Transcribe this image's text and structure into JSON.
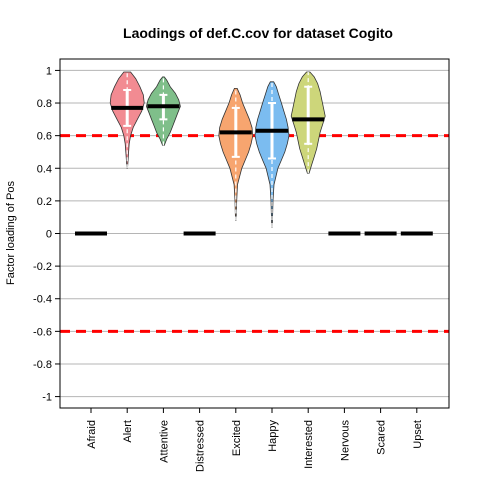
{
  "chart_data": {
    "type": "violin",
    "title": "Laodings of def.C.cov for dataset Cogito",
    "xlabel": "",
    "ylabel": "Factor loading of Pos",
    "ylim": [
      -1.07,
      1.07
    ],
    "yticks": [
      1,
      0.8,
      0.6,
      0.4,
      0.2,
      0,
      -0.2,
      -0.4,
      -0.6,
      -0.8,
      -1
    ],
    "ytick_labels": [
      "1",
      "0.8",
      "0.6",
      "0.4",
      "0.2",
      "0",
      "-0.2",
      "-0.4",
      "-0.6",
      "-0.8",
      "-1"
    ],
    "grid": true,
    "reference_lines": [
      0.6,
      -0.6
    ],
    "reference_color": "#ff0000",
    "categories": [
      "Afraid",
      "Alert",
      "Attentive",
      "Distressed",
      "Excited",
      "Happy",
      "Interested",
      "Nervous",
      "Scared",
      "Upset"
    ],
    "medians": [
      0,
      0.77,
      0.78,
      0,
      0.62,
      0.63,
      0.7,
      0,
      0,
      0
    ],
    "series": [
      {
        "category": "Afraid",
        "has_violin": false,
        "median": 0
      },
      {
        "category": "Alert",
        "has_violin": true,
        "color": "#f28b92",
        "min": 0.4,
        "max": 0.99,
        "median": 0.77,
        "q1": 0.66,
        "q3": 0.88,
        "density": [
          [
            0.4,
            0.02
          ],
          [
            0.45,
            0.05
          ],
          [
            0.5,
            0.08
          ],
          [
            0.55,
            0.12
          ],
          [
            0.6,
            0.2
          ],
          [
            0.65,
            0.35
          ],
          [
            0.7,
            0.6
          ],
          [
            0.75,
            0.85
          ],
          [
            0.8,
            1.0
          ],
          [
            0.85,
            0.95
          ],
          [
            0.9,
            0.75
          ],
          [
            0.95,
            0.5
          ],
          [
            0.99,
            0.2
          ]
        ]
      },
      {
        "category": "Attentive",
        "has_violin": true,
        "color": "#7fbf8a",
        "min": 0.54,
        "max": 0.96,
        "median": 0.78,
        "q1": 0.7,
        "q3": 0.85,
        "density": [
          [
            0.54,
            0.05
          ],
          [
            0.58,
            0.2
          ],
          [
            0.62,
            0.4
          ],
          [
            0.66,
            0.55
          ],
          [
            0.7,
            0.7
          ],
          [
            0.74,
            0.85
          ],
          [
            0.78,
            1.0
          ],
          [
            0.82,
            0.9
          ],
          [
            0.86,
            0.7
          ],
          [
            0.9,
            0.4
          ],
          [
            0.94,
            0.2
          ],
          [
            0.96,
            0.05
          ]
        ]
      },
      {
        "category": "Distressed",
        "has_violin": false,
        "median": 0
      },
      {
        "category": "Excited",
        "has_violin": true,
        "color": "#f7a56f",
        "min": 0.08,
        "max": 0.89,
        "median": 0.62,
        "q1": 0.47,
        "q3": 0.77,
        "density": [
          [
            0.08,
            0.02
          ],
          [
            0.2,
            0.05
          ],
          [
            0.3,
            0.1
          ],
          [
            0.4,
            0.35
          ],
          [
            0.45,
            0.55
          ],
          [
            0.5,
            0.75
          ],
          [
            0.55,
            0.9
          ],
          [
            0.6,
            1.0
          ],
          [
            0.65,
            0.95
          ],
          [
            0.7,
            0.8
          ],
          [
            0.75,
            0.6
          ],
          [
            0.8,
            0.4
          ],
          [
            0.85,
            0.25
          ],
          [
            0.89,
            0.08
          ]
        ]
      },
      {
        "category": "Happy",
        "has_violin": true,
        "color": "#7bbcf0",
        "min": 0.04,
        "max": 0.93,
        "median": 0.63,
        "q1": 0.46,
        "q3": 0.8,
        "density": [
          [
            0.04,
            0.02
          ],
          [
            0.2,
            0.06
          ],
          [
            0.3,
            0.12
          ],
          [
            0.4,
            0.35
          ],
          [
            0.45,
            0.55
          ],
          [
            0.5,
            0.75
          ],
          [
            0.55,
            0.9
          ],
          [
            0.6,
            1.0
          ],
          [
            0.65,
            0.95
          ],
          [
            0.7,
            0.85
          ],
          [
            0.75,
            0.7
          ],
          [
            0.8,
            0.55
          ],
          [
            0.85,
            0.4
          ],
          [
            0.9,
            0.25
          ],
          [
            0.93,
            0.1
          ]
        ]
      },
      {
        "category": "Interested",
        "has_violin": true,
        "color": "#cdd67a",
        "min": 0.37,
        "max": 0.99,
        "median": 0.7,
        "q1": 0.55,
        "q3": 0.9,
        "density": [
          [
            0.37,
            0.05
          ],
          [
            0.42,
            0.2
          ],
          [
            0.47,
            0.35
          ],
          [
            0.52,
            0.5
          ],
          [
            0.57,
            0.6
          ],
          [
            0.62,
            0.7
          ],
          [
            0.67,
            0.85
          ],
          [
            0.72,
            1.0
          ],
          [
            0.77,
            0.9
          ],
          [
            0.82,
            0.8
          ],
          [
            0.87,
            0.7
          ],
          [
            0.92,
            0.55
          ],
          [
            0.96,
            0.35
          ],
          [
            0.99,
            0.1
          ]
        ]
      },
      {
        "category": "Nervous",
        "has_violin": false,
        "median": 0
      },
      {
        "category": "Scared",
        "has_violin": false,
        "median": 0
      },
      {
        "category": "Upset",
        "has_violin": false,
        "median": 0
      }
    ]
  }
}
